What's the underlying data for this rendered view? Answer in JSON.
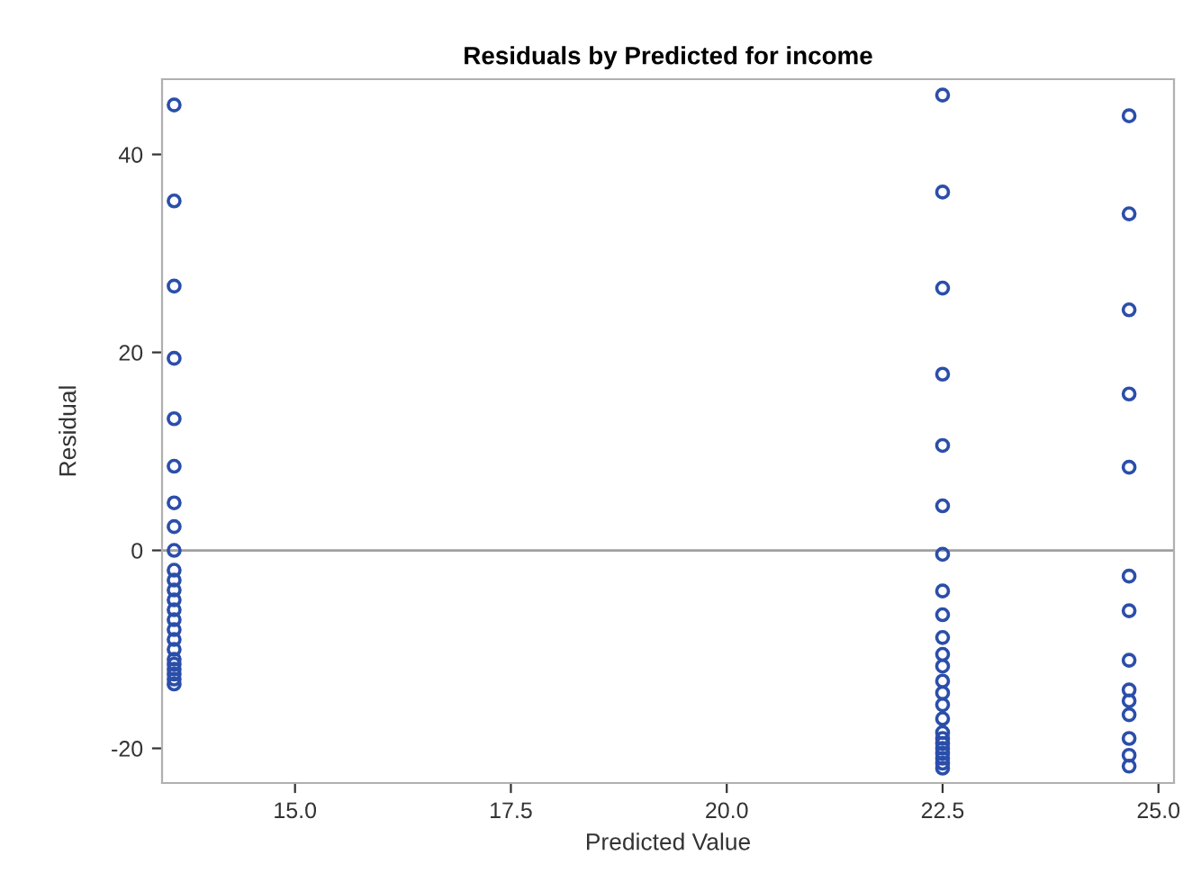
{
  "chart_data": {
    "type": "scatter",
    "title": "Residuals by Predicted for income",
    "xlabel": "Predicted Value",
    "ylabel": "Residual",
    "series": [
      {
        "color": "#2b4eaa",
        "x": [
          13.6,
          13.6,
          13.6,
          13.6,
          13.6,
          13.6,
          13.6,
          13.6,
          13.6,
          13.6,
          13.6,
          13.6,
          13.6,
          13.6,
          13.6,
          13.6,
          13.6,
          13.6,
          13.6,
          13.6,
          13.6,
          13.6,
          13.6,
          13.6,
          22.5,
          22.5,
          22.5,
          22.5,
          22.5,
          22.5,
          22.5,
          22.5,
          22.5,
          22.5,
          22.5,
          22.5,
          22.5,
          22.5,
          22.5,
          22.5,
          22.5,
          22.5,
          22.5,
          22.5,
          22.5,
          22.5,
          22.5,
          22.5,
          24.66,
          24.66,
          24.66,
          24.66,
          24.66,
          24.66,
          24.66,
          24.66,
          24.66,
          24.66,
          24.66,
          24.66,
          24.66,
          24.66
        ],
        "values": [
          45.0,
          35.3,
          26.7,
          19.4,
          13.3,
          8.5,
          4.8,
          2.4,
          0,
          -2,
          -3,
          -4,
          -5,
          -6,
          -7,
          -8,
          -9,
          -10,
          -11,
          -11.5,
          -12,
          -12.5,
          -13,
          -13.5,
          46.0,
          36.2,
          26.5,
          17.8,
          10.6,
          4.5,
          -0.4,
          -4.1,
          -6.5,
          -8.8,
          -10.5,
          -11.7,
          -13.2,
          -14.4,
          -15.6,
          -17.0,
          -18.4,
          -19,
          -19.5,
          -20,
          -20.5,
          -21,
          -21.5,
          -22,
          43.9,
          34.0,
          24.3,
          15.8,
          8.4,
          -2.6,
          -6.1,
          -11.1,
          -14.1,
          -15.2,
          -16.6,
          -19.0,
          -20.7,
          -21.8
        ]
      }
    ],
    "marker": "circle",
    "xlim": [
      13.46,
      25.18
    ],
    "xticks": [
      {
        "value": 15,
        "label": "15.0"
      },
      {
        "value": 17.5,
        "label": "17.5"
      },
      {
        "value": 20,
        "label": "20.0"
      },
      {
        "value": 22.5,
        "label": "22.5"
      },
      {
        "value": 25,
        "label": "25.0"
      }
    ],
    "ylim": [
      -23.5,
      47.6
    ],
    "yticks": [
      -20,
      0,
      20,
      40
    ],
    "ref_lines": [
      {
        "axis": "y",
        "value": 0,
        "color": "#a0a0a0"
      }
    ],
    "grid": false,
    "legend": false
  }
}
